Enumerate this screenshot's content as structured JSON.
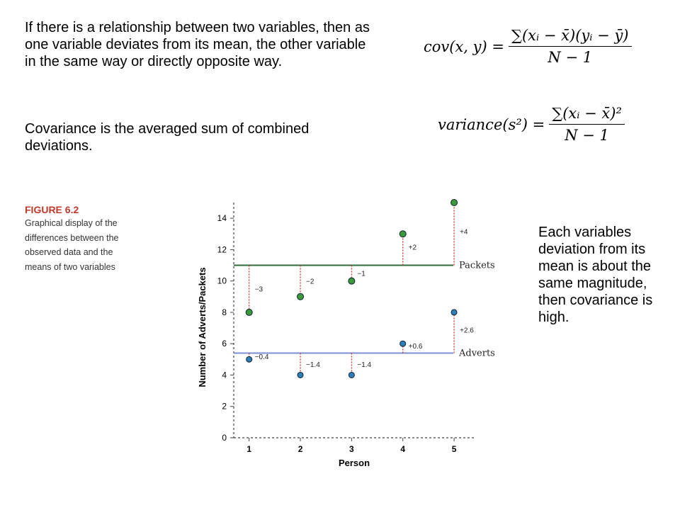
{
  "text": {
    "intro": "If there is a relationship between two variables, then as one variable deviates from its mean, the other variable in the same way or directly opposite way.",
    "cov_def": "Covariance is the averaged sum of combined deviations.",
    "right_note": "Each variables deviation from its mean is about the same magnitude, then covariance is high."
  },
  "formulas": {
    "cov_lhs": "cov(x, y) =",
    "cov_num": "∑(xᵢ − x̄)(yᵢ − ȳ)",
    "cov_den": "N − 1",
    "var_lhs": "variance(s²) =",
    "var_num": "∑(xᵢ − x̄)²",
    "var_den": "N − 1"
  },
  "caption": {
    "figure": "FIGURE 6.2",
    "text": "Graphical display of the differences between the observed data and the means of two variables"
  },
  "chart_data": {
    "type": "scatter",
    "xlabel": "Person",
    "ylabel": "Number of Adverts/Packets",
    "x": [
      1,
      2,
      3,
      4,
      5
    ],
    "xlim": [
      0.7,
      5.4
    ],
    "ylim": [
      0,
      15
    ],
    "yticks": [
      0,
      2,
      4,
      6,
      8,
      10,
      12,
      14
    ],
    "grid": false,
    "series": [
      {
        "name": "Packets",
        "values": [
          8,
          9,
          10,
          13,
          15
        ],
        "mean": 11,
        "deviation_labels": [
          "−3",
          "−2",
          "−1",
          "+2",
          "+4"
        ],
        "color": "#3a9a3a",
        "mean_color": "#2e6b3a"
      },
      {
        "name": "Adverts",
        "values": [
          5,
          4,
          4,
          6,
          8
        ],
        "mean": 5.4,
        "deviation_labels": [
          "−0.4",
          "−1.4",
          "−1.4",
          "+0.6",
          "+2.6"
        ],
        "color": "#2c7fb8",
        "mean_color": "#7b8fd1"
      }
    ],
    "deviation_color": "#d0342c"
  }
}
